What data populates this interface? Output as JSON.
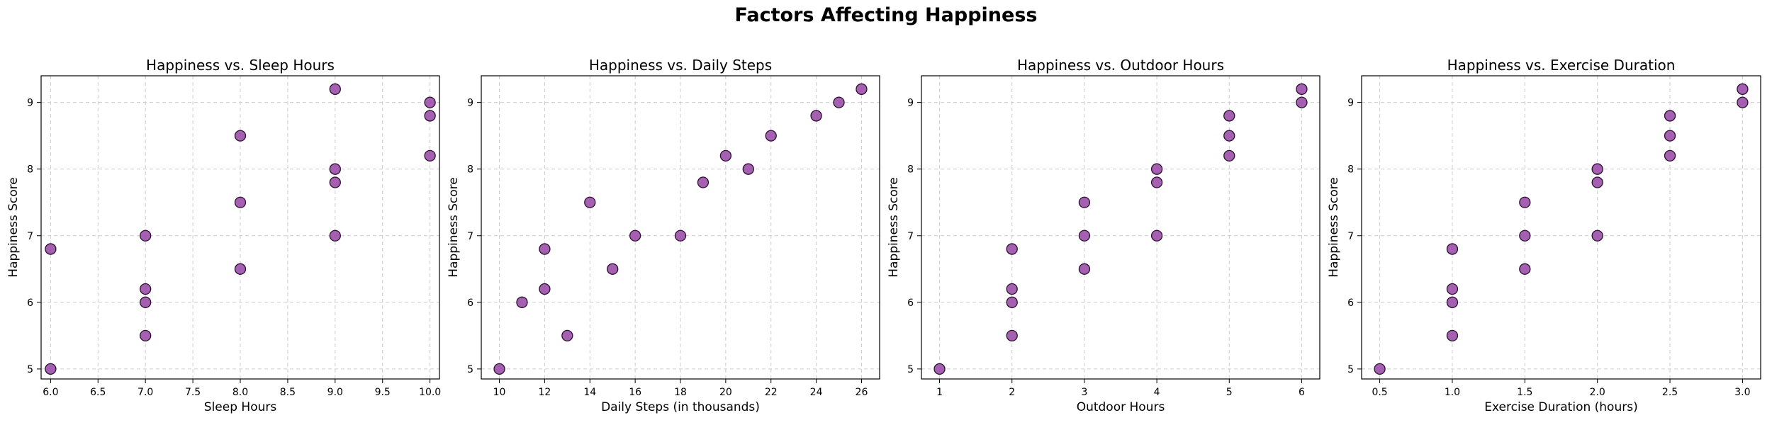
{
  "page": {
    "suptitle": "Factors Affecting Happiness"
  },
  "style": {
    "marker_fill": "#9b4fa8",
    "marker_edge": "#2b1030",
    "grid_color": "#cccccc"
  },
  "chart_data": [
    {
      "type": "scatter",
      "title": "Happiness vs. Sleep Hours",
      "xlabel": "Sleep Hours",
      "ylabel": "Happiness Score",
      "xlim": [
        5.9,
        10.1
      ],
      "ylim": [
        4.85,
        9.4
      ],
      "xticks": [
        6.0,
        6.5,
        7.0,
        7.5,
        8.0,
        8.5,
        9.0,
        9.5,
        10.0
      ],
      "xtick_labels": [
        "6.0",
        "6.5",
        "7.0",
        "7.5",
        "8.0",
        "8.5",
        "9.0",
        "9.5",
        "10.0"
      ],
      "yticks": [
        5,
        6,
        7,
        8,
        9
      ],
      "ytick_labels": [
        "5",
        "6",
        "7",
        "8",
        "9"
      ],
      "grid": true,
      "points": [
        {
          "x": 6,
          "y": 6.8
        },
        {
          "x": 6,
          "y": 5.0
        },
        {
          "x": 7,
          "y": 7.0
        },
        {
          "x": 7,
          "y": 6.2
        },
        {
          "x": 7,
          "y": 6.0
        },
        {
          "x": 7,
          "y": 5.5
        },
        {
          "x": 8,
          "y": 8.5
        },
        {
          "x": 8,
          "y": 7.5
        },
        {
          "x": 8,
          "y": 6.5
        },
        {
          "x": 9,
          "y": 9.2
        },
        {
          "x": 9,
          "y": 8.0
        },
        {
          "x": 9,
          "y": 7.8
        },
        {
          "x": 9,
          "y": 7.0
        },
        {
          "x": 10,
          "y": 9.0
        },
        {
          "x": 10,
          "y": 8.8
        },
        {
          "x": 10,
          "y": 8.2
        }
      ]
    },
    {
      "type": "scatter",
      "title": "Happiness vs. Daily Steps",
      "xlabel": "Daily Steps (in thousands)",
      "ylabel": "Happiness Score",
      "xlim": [
        9.2,
        26.8
      ],
      "ylim": [
        4.85,
        9.4
      ],
      "xticks": [
        10,
        12,
        14,
        16,
        18,
        20,
        22,
        24,
        26
      ],
      "xtick_labels": [
        "10",
        "12",
        "14",
        "16",
        "18",
        "20",
        "22",
        "24",
        "26"
      ],
      "yticks": [
        5,
        6,
        7,
        8,
        9
      ],
      "ytick_labels": [
        "5",
        "6",
        "7",
        "8",
        "9"
      ],
      "grid": true,
      "points": [
        {
          "x": 10,
          "y": 5.0
        },
        {
          "x": 11,
          "y": 6.0
        },
        {
          "x": 12,
          "y": 6.8
        },
        {
          "x": 12,
          "y": 6.2
        },
        {
          "x": 13,
          "y": 5.5
        },
        {
          "x": 14,
          "y": 7.5
        },
        {
          "x": 15,
          "y": 6.5
        },
        {
          "x": 16,
          "y": 7.0
        },
        {
          "x": 18,
          "y": 7.0
        },
        {
          "x": 19,
          "y": 7.8
        },
        {
          "x": 20,
          "y": 8.2
        },
        {
          "x": 21,
          "y": 8.0
        },
        {
          "x": 22,
          "y": 8.5
        },
        {
          "x": 24,
          "y": 8.8
        },
        {
          "x": 25,
          "y": 9.0
        },
        {
          "x": 26,
          "y": 9.2
        }
      ]
    },
    {
      "type": "scatter",
      "title": "Happiness vs. Outdoor Hours",
      "xlabel": "Outdoor Hours",
      "ylabel": "Happiness Score",
      "xlim": [
        0.75,
        6.25
      ],
      "ylim": [
        4.85,
        9.4
      ],
      "xticks": [
        1,
        2,
        3,
        4,
        5,
        6
      ],
      "xtick_labels": [
        "1",
        "2",
        "3",
        "4",
        "5",
        "6"
      ],
      "yticks": [
        5,
        6,
        7,
        8,
        9
      ],
      "ytick_labels": [
        "5",
        "6",
        "7",
        "8",
        "9"
      ],
      "grid": true,
      "points": [
        {
          "x": 1,
          "y": 5.0
        },
        {
          "x": 2,
          "y": 6.8
        },
        {
          "x": 2,
          "y": 6.2
        },
        {
          "x": 2,
          "y": 6.0
        },
        {
          "x": 2,
          "y": 5.5
        },
        {
          "x": 3,
          "y": 7.5
        },
        {
          "x": 3,
          "y": 7.0
        },
        {
          "x": 3,
          "y": 6.5
        },
        {
          "x": 4,
          "y": 8.0
        },
        {
          "x": 4,
          "y": 7.8
        },
        {
          "x": 4,
          "y": 7.0
        },
        {
          "x": 5,
          "y": 8.8
        },
        {
          "x": 5,
          "y": 8.5
        },
        {
          "x": 5,
          "y": 8.2
        },
        {
          "x": 6,
          "y": 9.2
        },
        {
          "x": 6,
          "y": 9.0
        }
      ]
    },
    {
      "type": "scatter",
      "title": "Happiness vs. Exercise Duration",
      "xlabel": "Exercise Duration (hours)",
      "ylabel": "Happiness Score",
      "xlim": [
        0.375,
        3.125
      ],
      "ylim": [
        4.85,
        9.4
      ],
      "xticks": [
        0.5,
        1.0,
        1.5,
        2.0,
        2.5,
        3.0
      ],
      "xtick_labels": [
        "0.5",
        "1.0",
        "1.5",
        "2.0",
        "2.5",
        "3.0"
      ],
      "yticks": [
        5,
        6,
        7,
        8,
        9
      ],
      "ytick_labels": [
        "5",
        "6",
        "7",
        "8",
        "9"
      ],
      "grid": true,
      "points": [
        {
          "x": 0.5,
          "y": 5.0
        },
        {
          "x": 1.0,
          "y": 6.8
        },
        {
          "x": 1.0,
          "y": 6.2
        },
        {
          "x": 1.0,
          "y": 6.0
        },
        {
          "x": 1.0,
          "y": 5.5
        },
        {
          "x": 1.5,
          "y": 7.5
        },
        {
          "x": 1.5,
          "y": 7.0
        },
        {
          "x": 1.5,
          "y": 6.5
        },
        {
          "x": 2.0,
          "y": 8.0
        },
        {
          "x": 2.0,
          "y": 7.8
        },
        {
          "x": 2.0,
          "y": 7.0
        },
        {
          "x": 2.5,
          "y": 8.8
        },
        {
          "x": 2.5,
          "y": 8.5
        },
        {
          "x": 2.5,
          "y": 8.2
        },
        {
          "x": 3.0,
          "y": 9.2
        },
        {
          "x": 3.0,
          "y": 9.0
        }
      ]
    }
  ]
}
